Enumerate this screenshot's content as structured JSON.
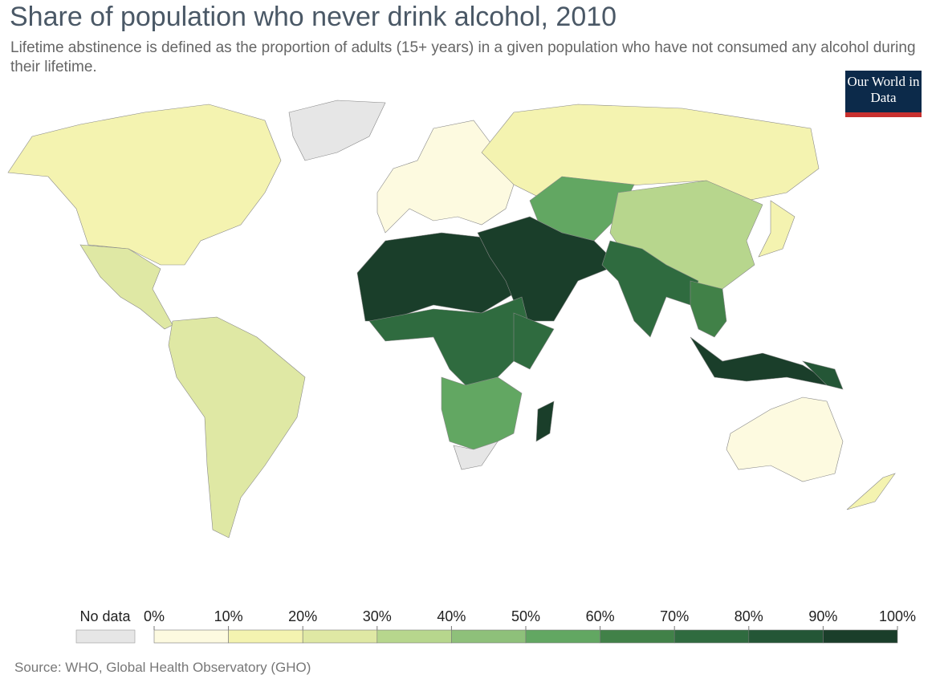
{
  "title": "Share of population who never drink alcohol, 2010",
  "subtitle": "Lifetime abstinence is defined as the proportion of adults (15+ years) in a given population who have not consumed any alcohol during their lifetime.",
  "logo": "Our World in Data",
  "source": "Source: WHO, Global Health Observatory (GHO)",
  "legend": {
    "no_data_label": "No data",
    "no_data_color": "#e6e6e6",
    "ticks": [
      {
        "value": 0,
        "label": "0%"
      },
      {
        "value": 10,
        "label": "10%"
      },
      {
        "value": 20,
        "label": "20%"
      },
      {
        "value": 30,
        "label": "30%"
      },
      {
        "value": 40,
        "label": "40%"
      },
      {
        "value": 50,
        "label": "50%"
      },
      {
        "value": 60,
        "label": "60%"
      },
      {
        "value": 70,
        "label": "70%"
      },
      {
        "value": 80,
        "label": "80%"
      },
      {
        "value": 90,
        "label": "90%"
      },
      {
        "value": 100,
        "label": "100%"
      }
    ],
    "colors": [
      "#fdfae0",
      "#f4f3b0",
      "#dfe8a4",
      "#b7d68d",
      "#8ec07a",
      "#62a762",
      "#418148",
      "#2f6b3f",
      "#245636",
      "#1a3e2a"
    ]
  },
  "regions": [
    {
      "value": 15
    },
    {
      "value": null
    },
    {
      "value": 25
    },
    {
      "value": 25
    },
    {
      "value": 8
    },
    {
      "value": 15
    },
    {
      "value": 55
    },
    {
      "value": 35
    },
    {
      "value": 15
    },
    {
      "value": 92
    },
    {
      "value": 95
    },
    {
      "value": 75
    },
    {
      "value": 60
    },
    {
      "value": 70
    },
    {
      "value": 75
    },
    {
      "value": 55
    },
    {
      "value": null
    },
    {
      "value": 90
    },
    {
      "value": 92
    },
    {
      "value": 85
    },
    {
      "value": 5
    },
    {
      "value": 15
    }
  ]
}
